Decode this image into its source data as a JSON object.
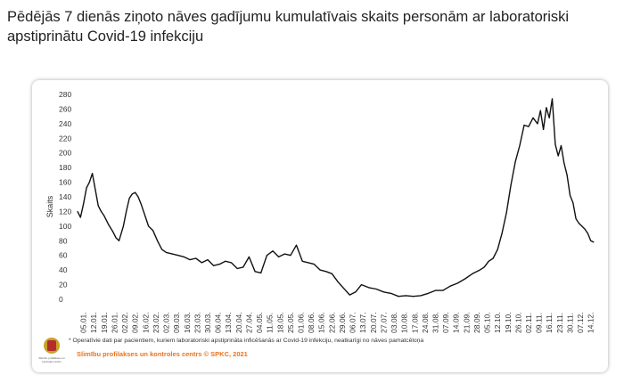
{
  "page": {
    "title": "Pēdējās 7 dienās ziņoto nāves gadījumu kumulatīvais skaits personām ar laboratoriski apstiprinātu Covid-19 infekciju"
  },
  "footer": {
    "footnote": "* Operatīvie dati par pacientiem, kuriem laboratoriski apstiprināta inficēšanās ar Covid-19 infekciju, neatkarīgi no nāves pamatcēloņa",
    "source": "Slimību profilakses un kontroles centrs © SPKC, 2021",
    "logo_lines": [
      "Slimību profilakses un",
      "kontroles centrs"
    ]
  },
  "colors": {
    "line": "#111111",
    "source_text": "#e8741f",
    "logo_red": "#b32d2e",
    "logo_gold": "#c9a227"
  },
  "chart_data": {
    "type": "line",
    "title": "Pēdējās 7 dienās ziņoto nāves gadījumu kumulatīvais skaits personām ar laboratoriski apstiprinātu Covid-19 infekciju",
    "xlabel": "",
    "ylabel": "Skaits",
    "ylim": [
      0,
      280
    ],
    "yticks": [
      0,
      20,
      40,
      60,
      80,
      100,
      120,
      140,
      160,
      180,
      200,
      220,
      240,
      260,
      280
    ],
    "grid": false,
    "legend": "none",
    "x_tick_labels": [
      "05.01.",
      "12.01.",
      "19.01.",
      "26.01.",
      "02.02.",
      "09.02.",
      "16.02.",
      "23.02.",
      "02.03.",
      "09.03.",
      "16.03.",
      "23.03.",
      "30.03.",
      "06.04.",
      "13.04.",
      "20.04.",
      "27.04.",
      "04.05.",
      "11.05.",
      "18.05.",
      "25.05.",
      "01.06.",
      "08.06.",
      "15.06.",
      "22.06.",
      "29.06.",
      "06.07.",
      "13.07.",
      "20.07.",
      "27.07.",
      "03.08.",
      "10.08.",
      "17.08.",
      "24.08.",
      "31.08.",
      "07.09.",
      "14.09.",
      "21.09.",
      "28.09.",
      "05.10.",
      "12.10.",
      "19.10.",
      "26.10.",
      "02.11.",
      "09.11.",
      "16.11.",
      "23.11.",
      "30.11.",
      "07.12.",
      "14.12."
    ],
    "series": [
      {
        "name": "",
        "x": [
          "01.01.",
          "03.01.",
          "05.01.",
          "07.01.",
          "09.01.",
          "11.01.",
          "13.01.",
          "15.01.",
          "17.01.",
          "19.01.",
          "22.01.",
          "25.01.",
          "27.01.",
          "29.01.",
          "01.02.",
          "03.02.",
          "05.02.",
          "07.02.",
          "09.02.",
          "11.02.",
          "13.02.",
          "16.02.",
          "18.02.",
          "21.02.",
          "24.02.",
          "27.02.",
          "02.03.",
          "06.03.",
          "10.03.",
          "14.03.",
          "18.03.",
          "22.03.",
          "26.03.",
          "30.03.",
          "03.04.",
          "07.04.",
          "11.04.",
          "15.04.",
          "19.04.",
          "23.04.",
          "27.04.",
          "01.05.",
          "05.05.",
          "09.05.",
          "13.05.",
          "17.05.",
          "21.05.",
          "25.05.",
          "29.05.",
          "02.06.",
          "06.06.",
          "10.06.",
          "14.06.",
          "18.06.",
          "22.06.",
          "26.06.",
          "30.06.",
          "04.07.",
          "08.07.",
          "12.07.",
          "17.07.",
          "22.07.",
          "27.07.",
          "01.08.",
          "06.08.",
          "11.08.",
          "16.08.",
          "21.08.",
          "26.08.",
          "31.08.",
          "05.09.",
          "10.09.",
          "15.09.",
          "20.09.",
          "25.09.",
          "30.09.",
          "03.10.",
          "06.10.",
          "09.10.",
          "12.10.",
          "15.10.",
          "18.10.",
          "21.10.",
          "24.10.",
          "27.10.",
          "30.10.",
          "02.11.",
          "05.11.",
          "08.11.",
          "10.11.",
          "12.11.",
          "14.11.",
          "16.11.",
          "18.11.",
          "20.11.",
          "22.11.",
          "24.11.",
          "26.11.",
          "28.11.",
          "30.11.",
          "02.12.",
          "04.12.",
          "06.12.",
          "08.12.",
          "10.12.",
          "12.12.",
          "14.12.",
          "16.12."
        ],
        "values": [
          120,
          112,
          130,
          152,
          160,
          172,
          150,
          128,
          120,
          114,
          102,
          92,
          84,
          80,
          100,
          120,
          138,
          144,
          146,
          140,
          130,
          112,
          100,
          94,
          80,
          68,
          64,
          62,
          60,
          58,
          54,
          56,
          50,
          54,
          46,
          48,
          52,
          50,
          42,
          44,
          58,
          38,
          36,
          60,
          66,
          58,
          62,
          60,
          74,
          52,
          50,
          48,
          40,
          38,
          35,
          24,
          15,
          6,
          10,
          20,
          16,
          14,
          10,
          8,
          4,
          5,
          4,
          5,
          8,
          12,
          12,
          18,
          22,
          28,
          35,
          40,
          44,
          52,
          56,
          68,
          90,
          118,
          156,
          188,
          210,
          238,
          236,
          248,
          240,
          258,
          232,
          262,
          248,
          274,
          212,
          196,
          210,
          186,
          170,
          142,
          132,
          110,
          104,
          100,
          96,
          90,
          80,
          78
        ]
      }
    ]
  }
}
